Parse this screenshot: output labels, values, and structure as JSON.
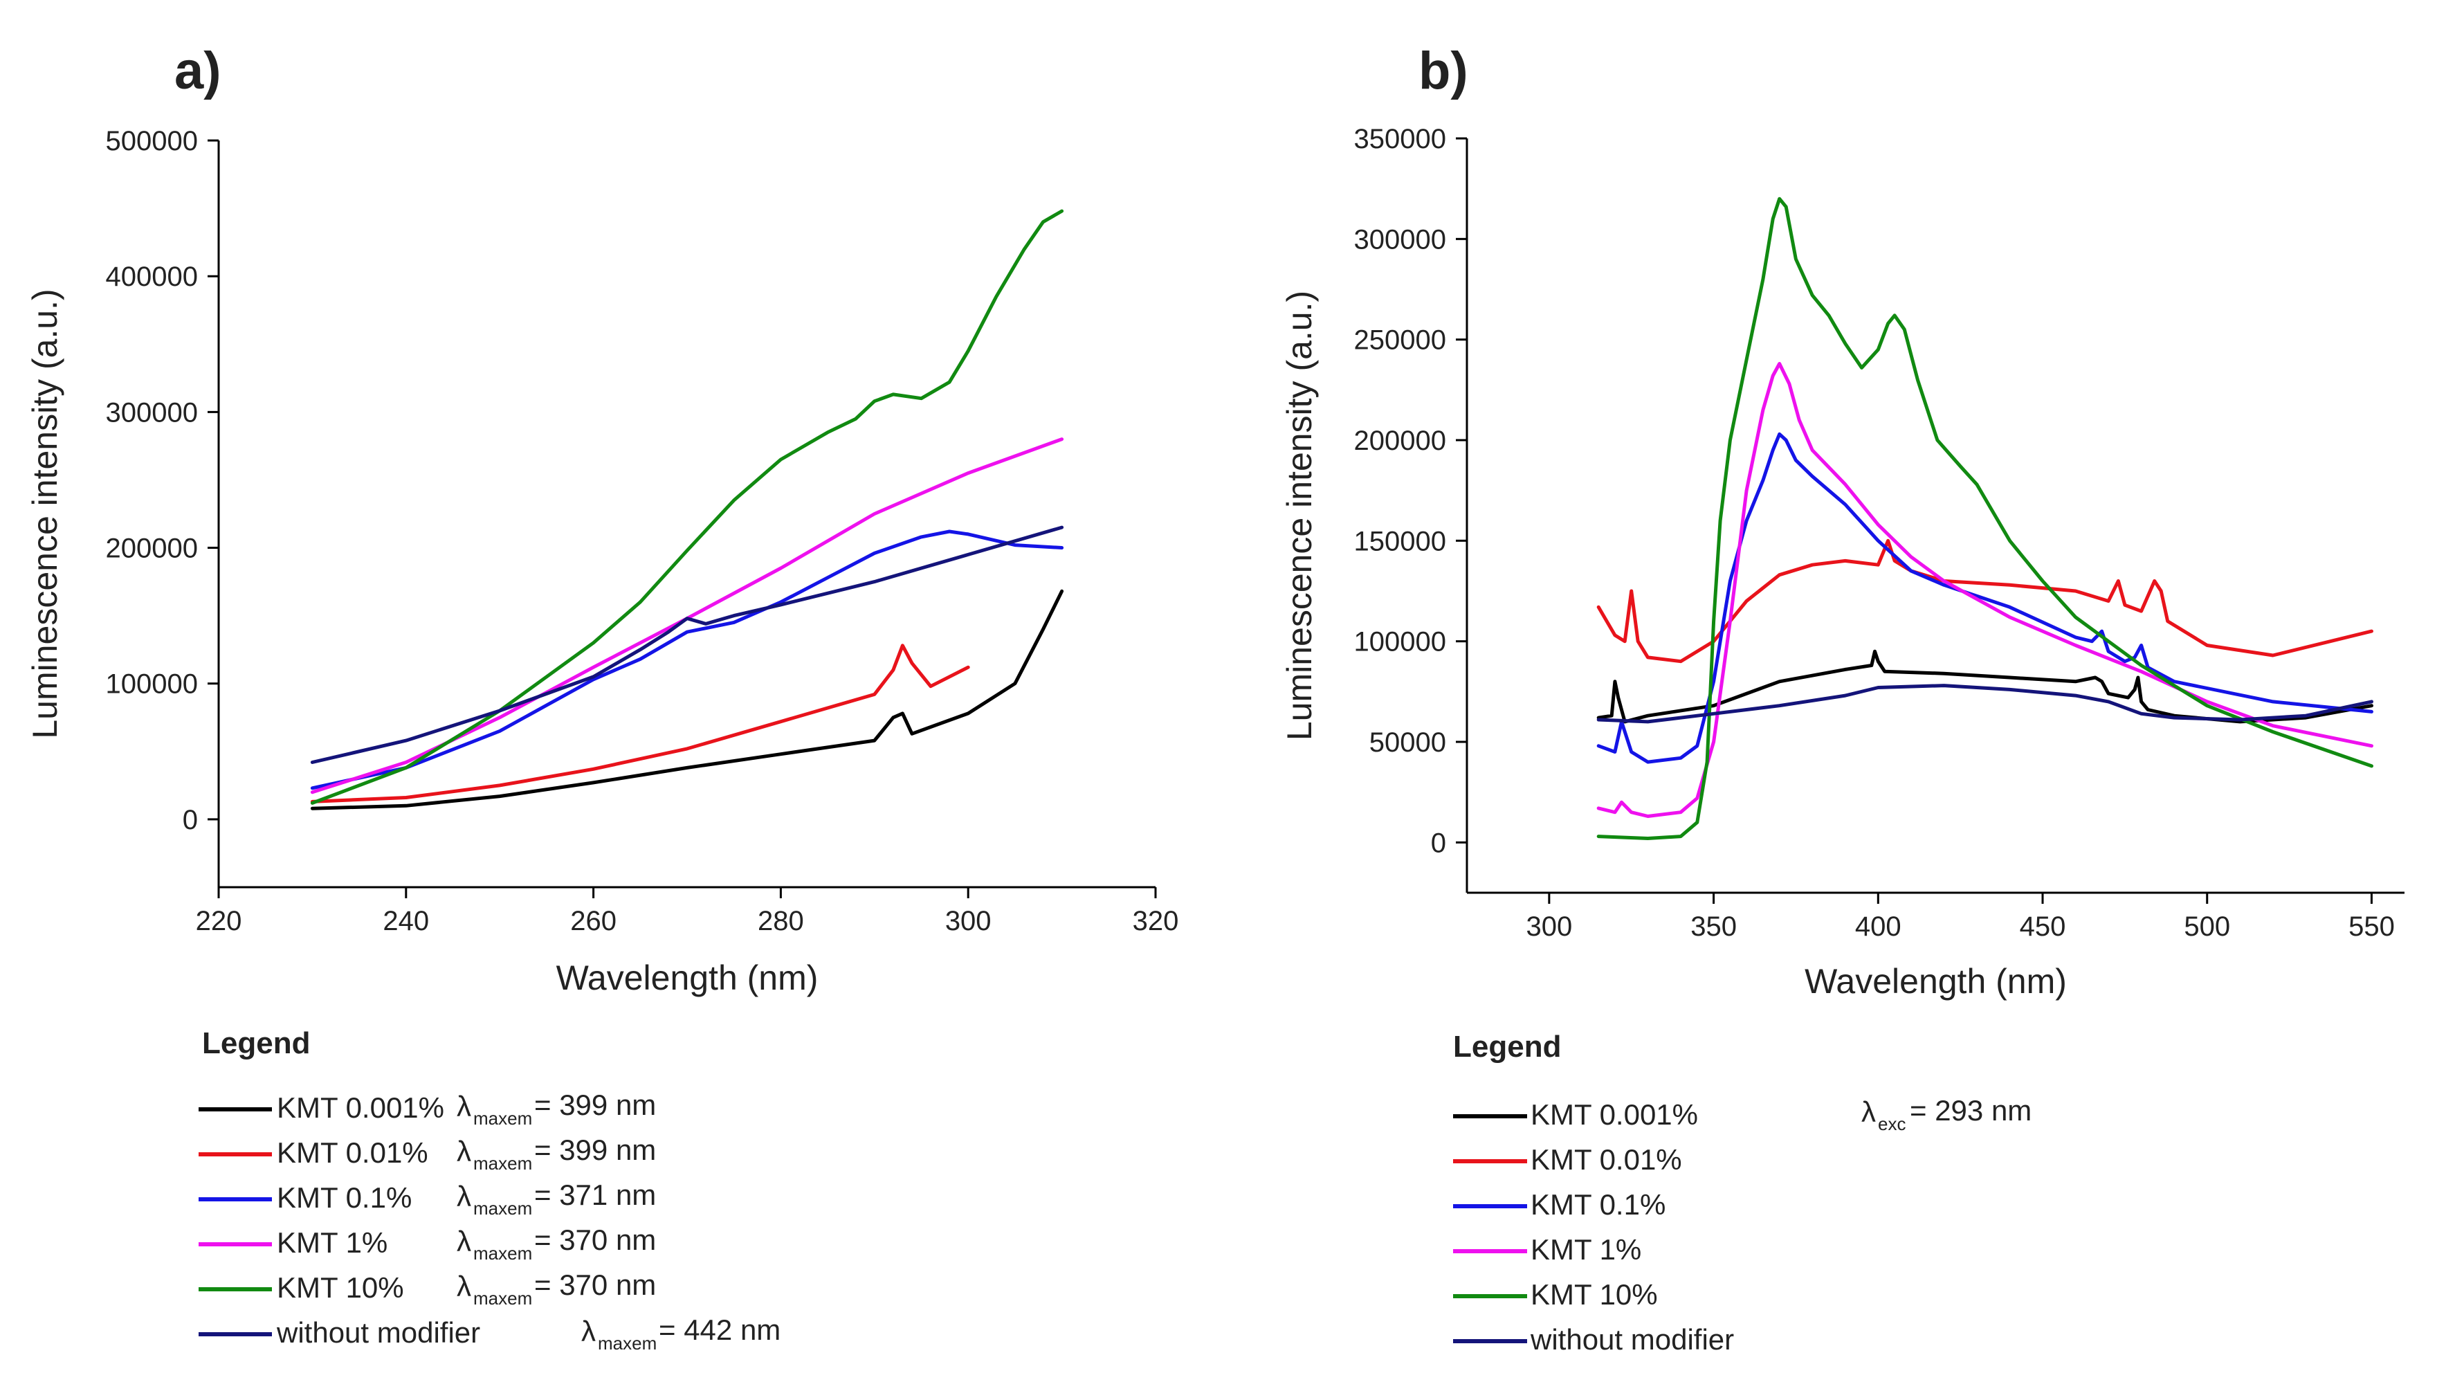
{
  "chart_data": [
    {
      "type": "line",
      "panel_label": "a)",
      "xlabel": "Wavelength (nm)",
      "ylabel": "Luminescence intensity (a.u.)",
      "xlim": [
        220,
        320
      ],
      "ylim": [
        -50000,
        500000
      ],
      "xticks": [
        220,
        240,
        260,
        280,
        300,
        320
      ],
      "yticks": [
        0,
        100000,
        200000,
        300000,
        400000,
        500000
      ],
      "legend_title": "Legend",
      "lambda_symbol": "λ",
      "lambda_subscript": "maxem",
      "series": [
        {
          "name": "KMT 0.001%",
          "color": "#000000",
          "lambda_text": "= 399 nm",
          "x": [
            230,
            240,
            250,
            260,
            270,
            280,
            285,
            290,
            292,
            293,
            294,
            296,
            300,
            305,
            308,
            310
          ],
          "y": [
            8000,
            10000,
            17000,
            27000,
            38000,
            48000,
            53000,
            58000,
            75000,
            78000,
            63000,
            68000,
            78000,
            100000,
            140000,
            168000
          ]
        },
        {
          "name": "KMT 0.01%",
          "color": "#e8131b",
          "lambda_text": "= 399 nm",
          "x": [
            230,
            240,
            250,
            260,
            270,
            280,
            285,
            290,
            292,
            293,
            294,
            296,
            300
          ],
          "y": [
            13000,
            16000,
            25000,
            37000,
            52000,
            72000,
            82000,
            92000,
            110000,
            128000,
            115000,
            98000,
            112000
          ]
        },
        {
          "name": "KMT 0.1%",
          "color": "#1414e6",
          "lambda_text": "= 371 nm",
          "x": [
            230,
            240,
            250,
            260,
            265,
            270,
            275,
            280,
            285,
            290,
            295,
            298,
            300,
            305,
            310
          ],
          "y": [
            23000,
            38000,
            65000,
            103000,
            118000,
            138000,
            145000,
            160000,
            178000,
            196000,
            208000,
            212000,
            210000,
            202000,
            200000
          ]
        },
        {
          "name": "KMT 1%",
          "color": "#ee11ee",
          "lambda_text": "= 370 nm",
          "x": [
            230,
            240,
            250,
            260,
            270,
            280,
            290,
            300,
            310
          ],
          "y": [
            20000,
            42000,
            75000,
            112000,
            148000,
            185000,
            225000,
            255000,
            280000
          ]
        },
        {
          "name": "KMT 10%",
          "color": "#118a11",
          "lambda_text": "= 370 nm",
          "x": [
            230,
            240,
            250,
            260,
            265,
            270,
            275,
            280,
            285,
            288,
            290,
            292,
            295,
            298,
            300,
            303,
            306,
            308,
            310
          ],
          "y": [
            12000,
            38000,
            80000,
            130000,
            160000,
            198000,
            235000,
            265000,
            285000,
            295000,
            308000,
            313000,
            310000,
            322000,
            345000,
            385000,
            420000,
            440000,
            448000
          ]
        },
        {
          "name": "without modifier",
          "color": "#14147a",
          "lambda_text": "= 442 nm",
          "x": [
            230,
            240,
            250,
            260,
            265,
            268,
            270,
            272,
            275,
            280,
            290,
            300,
            310
          ],
          "y": [
            42000,
            58000,
            80000,
            105000,
            125000,
            138000,
            148000,
            144000,
            150000,
            158000,
            175000,
            195000,
            215000
          ]
        }
      ]
    },
    {
      "type": "line",
      "panel_label": "b)",
      "xlabel": "Wavelength (nm)",
      "ylabel": "Luminescence intensity (a.u.)",
      "xlim": [
        275,
        560
      ],
      "ylim": [
        -25000,
        350000
      ],
      "xticks": [
        300,
        350,
        400,
        450,
        500,
        550
      ],
      "yticks": [
        0,
        50000,
        100000,
        150000,
        200000,
        250000,
        300000,
        350000
      ],
      "legend_title": "Legend",
      "lambda_symbol": "λ",
      "lambda_subscript": "exc",
      "lambda_text": "= 293 nm",
      "series": [
        {
          "name": "KMT 0.001%",
          "color": "#000000",
          "x": [
            315,
            319,
            320,
            321,
            323,
            330,
            350,
            370,
            390,
            398,
            399,
            400,
            402,
            420,
            440,
            460,
            466,
            468,
            470,
            476,
            478,
            479,
            480,
            482,
            490,
            510,
            530,
            550
          ],
          "y": [
            62000,
            63000,
            80000,
            72000,
            60000,
            63000,
            68000,
            80000,
            86000,
            88000,
            95000,
            90000,
            85000,
            84000,
            82000,
            80000,
            82000,
            80000,
            74000,
            72000,
            76000,
            82000,
            70000,
            66000,
            63000,
            60000,
            62000,
            68000
          ]
        },
        {
          "name": "KMT 0.01%",
          "color": "#e8131b",
          "x": [
            315,
            320,
            323,
            325,
            327,
            330,
            340,
            350,
            360,
            370,
            380,
            390,
            400,
            403,
            405,
            410,
            420,
            440,
            460,
            470,
            473,
            475,
            480,
            484,
            486,
            488,
            500,
            520,
            550
          ],
          "y": [
            117000,
            103000,
            100000,
            125000,
            100000,
            92000,
            90000,
            100000,
            120000,
            133000,
            138000,
            140000,
            138000,
            150000,
            140000,
            135000,
            130000,
            128000,
            125000,
            120000,
            130000,
            118000,
            115000,
            130000,
            125000,
            110000,
            98000,
            93000,
            105000
          ]
        },
        {
          "name": "KMT 0.1%",
          "color": "#1414e6",
          "x": [
            315,
            320,
            322,
            325,
            330,
            340,
            345,
            350,
            355,
            360,
            365,
            368,
            370,
            372,
            375,
            380,
            390,
            400,
            410,
            420,
            440,
            460,
            465,
            468,
            470,
            475,
            478,
            480,
            482,
            490,
            520,
            550
          ],
          "y": [
            48000,
            45000,
            60000,
            45000,
            40000,
            42000,
            48000,
            80000,
            130000,
            160000,
            180000,
            195000,
            203000,
            200000,
            190000,
            182000,
            168000,
            150000,
            135000,
            128000,
            117000,
            102000,
            100000,
            105000,
            95000,
            90000,
            92000,
            98000,
            87000,
            80000,
            70000,
            65000
          ]
        },
        {
          "name": "KMT 1%",
          "color": "#ee11ee",
          "x": [
            315,
            320,
            322,
            325,
            330,
            340,
            345,
            350,
            355,
            360,
            365,
            368,
            370,
            373,
            376,
            380,
            390,
            400,
            410,
            420,
            440,
            460,
            480,
            500,
            520,
            550
          ],
          "y": [
            17000,
            15000,
            20000,
            15000,
            13000,
            15000,
            22000,
            50000,
            110000,
            175000,
            215000,
            232000,
            238000,
            228000,
            210000,
            195000,
            178000,
            158000,
            142000,
            130000,
            112000,
            98000,
            85000,
            70000,
            58000,
            48000
          ]
        },
        {
          "name": "KMT 10%",
          "color": "#118a11",
          "x": [
            315,
            330,
            340,
            345,
            348,
            350,
            352,
            355,
            360,
            365,
            368,
            370,
            372,
            375,
            380,
            385,
            390,
            395,
            400,
            403,
            405,
            408,
            412,
            418,
            425,
            430,
            440,
            450,
            460,
            480,
            500,
            520,
            550
          ],
          "y": [
            3000,
            2000,
            3000,
            10000,
            40000,
            110000,
            160000,
            200000,
            240000,
            280000,
            310000,
            320000,
            316000,
            290000,
            272000,
            262000,
            248000,
            236000,
            245000,
            258000,
            262000,
            255000,
            230000,
            200000,
            187000,
            178000,
            150000,
            130000,
            112000,
            88000,
            68000,
            55000,
            38000
          ]
        },
        {
          "name": "without modifier",
          "color": "#14147a",
          "x": [
            315,
            330,
            350,
            370,
            390,
            400,
            420,
            440,
            460,
            470,
            480,
            490,
            510,
            530,
            550
          ],
          "y": [
            61000,
            60000,
            64000,
            68000,
            73000,
            77000,
            78000,
            76000,
            73000,
            70000,
            64000,
            62000,
            61000,
            63000,
            70000
          ]
        }
      ]
    }
  ]
}
